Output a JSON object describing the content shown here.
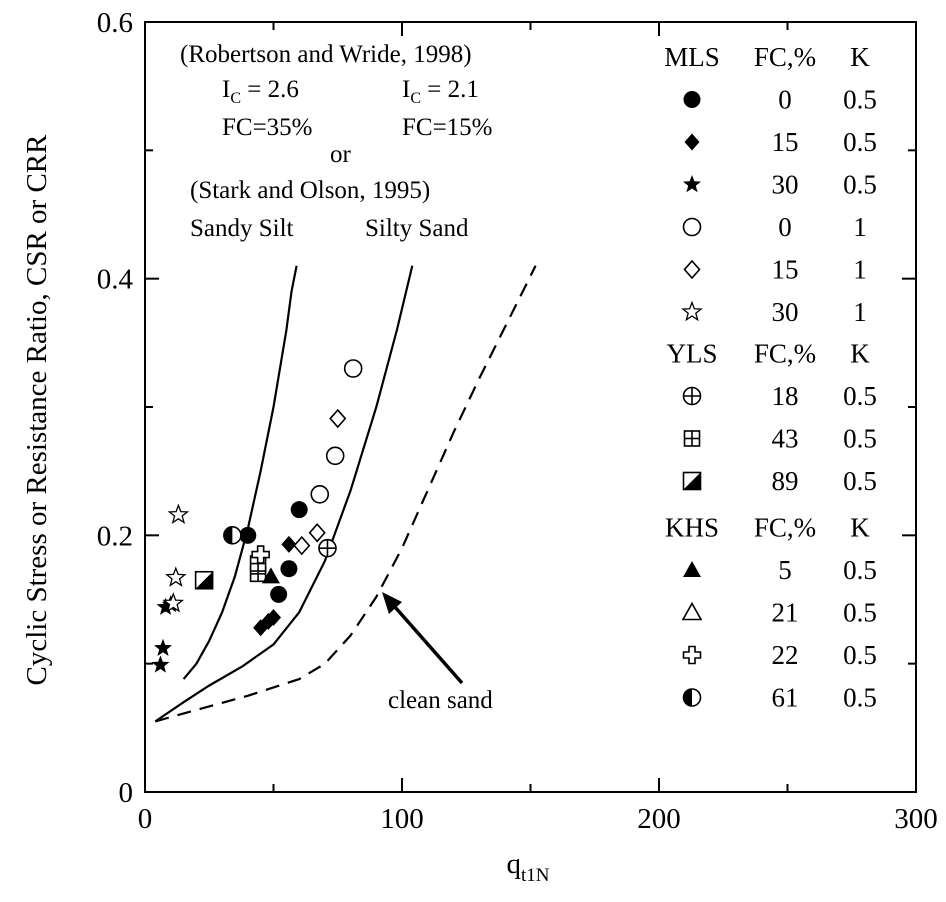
{
  "chart_data": {
    "type": "scatter",
    "xlabel": "q",
    "xlabel_sub": "t1N",
    "ylabel": "Cyclic Stress or Resistance Ratio, CSR or CRR",
    "xlim": [
      0,
      300
    ],
    "ylim": [
      0,
      0.6
    ],
    "x_ticks": [
      "0",
      "100",
      "200",
      "300"
    ],
    "y_ticks": [
      "0",
      "0.2",
      "0.4",
      "0.6"
    ],
    "grid": false,
    "annotations": {
      "source1": "(Robertson and Wride, 1998)",
      "ic_left": "I",
      "ic_left_sub": "C",
      "ic_left_val": " = 2.6",
      "ic_right": "I",
      "ic_right_sub": "C",
      "ic_right_val": " = 2.1",
      "fc_left": "FC=35%",
      "fc_right": "FC=15%",
      "or": "or",
      "source2": "(Stark and Olson, 1995)",
      "curve_left": "Sandy Silt",
      "curve_right": "Silty Sand",
      "clean_sand": "clean sand"
    },
    "curves": [
      {
        "name": "Sandy Silt",
        "style": "solid",
        "points": [
          [
            15,
            0.088
          ],
          [
            20,
            0.1
          ],
          [
            25,
            0.118
          ],
          [
            30,
            0.14
          ],
          [
            35,
            0.168
          ],
          [
            40,
            0.205
          ],
          [
            45,
            0.25
          ],
          [
            50,
            0.3
          ],
          [
            55,
            0.36
          ],
          [
            57,
            0.39
          ],
          [
            59,
            0.41
          ]
        ]
      },
      {
        "name": "Silty Sand",
        "style": "solid",
        "points": [
          [
            4,
            0.055
          ],
          [
            15,
            0.07
          ],
          [
            25,
            0.083
          ],
          [
            38,
            0.098
          ],
          [
            50,
            0.115
          ],
          [
            60,
            0.14
          ],
          [
            70,
            0.18
          ],
          [
            80,
            0.235
          ],
          [
            90,
            0.3
          ],
          [
            98,
            0.36
          ],
          [
            104,
            0.41
          ]
        ]
      },
      {
        "name": "clean sand",
        "style": "dashed",
        "points": [
          [
            4,
            0.055
          ],
          [
            20,
            0.064
          ],
          [
            40,
            0.075
          ],
          [
            60,
            0.088
          ],
          [
            70,
            0.1
          ],
          [
            80,
            0.122
          ],
          [
            90,
            0.152
          ],
          [
            100,
            0.19
          ],
          [
            110,
            0.235
          ],
          [
            120,
            0.28
          ],
          [
            130,
            0.322
          ],
          [
            140,
            0.362
          ],
          [
            152,
            0.41
          ]
        ]
      }
    ],
    "series": [
      {
        "group": "MLS",
        "fc": "0",
        "k": "0.5",
        "marker": "circle-filled",
        "points": [
          [
            40,
            0.2
          ],
          [
            52,
            0.154
          ],
          [
            56,
            0.174
          ],
          [
            60,
            0.22
          ]
        ]
      },
      {
        "group": "MLS",
        "fc": "15",
        "k": "0.5",
        "marker": "diamond-filled",
        "points": [
          [
            45,
            0.128
          ],
          [
            48,
            0.133
          ],
          [
            50,
            0.136
          ],
          [
            56,
            0.193
          ]
        ]
      },
      {
        "group": "MLS",
        "fc": "30",
        "k": "0.5",
        "marker": "star-filled",
        "points": [
          [
            6,
            0.099
          ],
          [
            7,
            0.112
          ],
          [
            8,
            0.144
          ],
          [
            10,
            0.146
          ]
        ]
      },
      {
        "group": "MLS",
        "fc": "0",
        "k": "1",
        "marker": "circle-open",
        "points": [
          [
            68,
            0.232
          ],
          [
            74,
            0.262
          ],
          [
            81,
            0.33
          ]
        ]
      },
      {
        "group": "MLS",
        "fc": "15",
        "k": "1",
        "marker": "diamond-open",
        "points": [
          [
            61,
            0.192
          ],
          [
            67,
            0.202
          ],
          [
            75,
            0.291
          ]
        ]
      },
      {
        "group": "MLS",
        "fc": "30",
        "k": "1",
        "marker": "star-open",
        "points": [
          [
            11,
            0.147
          ],
          [
            12,
            0.167
          ],
          [
            13,
            0.216
          ]
        ]
      },
      {
        "group": "YLS",
        "fc": "18",
        "k": "0.5",
        "marker": "circle-plus",
        "points": [
          [
            71,
            0.19
          ]
        ]
      },
      {
        "group": "YLS",
        "fc": "43",
        "k": "0.5",
        "marker": "square-plus",
        "points": [
          [
            44,
            0.17
          ],
          [
            44,
            0.178
          ]
        ]
      },
      {
        "group": "YLS",
        "fc": "89",
        "k": "0.5",
        "marker": "square-half",
        "points": [
          [
            23,
            0.165
          ]
        ]
      },
      {
        "group": "KHS",
        "fc": "5",
        "k": "0.5",
        "marker": "triangle-filled",
        "points": [
          [
            49,
            0.168
          ]
        ]
      },
      {
        "group": "KHS",
        "fc": "21",
        "k": "0.5",
        "marker": "triangle-open",
        "points": []
      },
      {
        "group": "KHS",
        "fc": "22",
        "k": "0.5",
        "marker": "cross-open",
        "points": [
          [
            45,
            0.185
          ]
        ]
      },
      {
        "group": "KHS",
        "fc": "61",
        "k": "0.5",
        "marker": "circle-half",
        "points": [
          [
            34,
            0.2
          ]
        ]
      }
    ],
    "legend": {
      "position": "right",
      "groups": [
        {
          "header": [
            "MLS",
            "FC,%",
            "K"
          ],
          "rows": [
            {
              "marker": "circle-filled",
              "fc": "0",
              "k": "0.5"
            },
            {
              "marker": "diamond-filled",
              "fc": "15",
              "k": "0.5"
            },
            {
              "marker": "star-filled",
              "fc": "30",
              "k": "0.5"
            },
            {
              "marker": "circle-open",
              "fc": "0",
              "k": "1"
            },
            {
              "marker": "diamond-open",
              "fc": "15",
              "k": "1"
            },
            {
              "marker": "star-open",
              "fc": "30",
              "k": "1"
            }
          ]
        },
        {
          "header": [
            "YLS",
            "FC,%",
            "K"
          ],
          "rows": [
            {
              "marker": "circle-plus",
              "fc": "18",
              "k": "0.5"
            },
            {
              "marker": "square-plus",
              "fc": "43",
              "k": "0.5"
            },
            {
              "marker": "square-half",
              "fc": "89",
              "k": "0.5"
            }
          ]
        },
        {
          "header": [
            "KHS",
            "FC,%",
            "K"
          ],
          "rows": [
            {
              "marker": "triangle-filled",
              "fc": "5",
              "k": "0.5"
            },
            {
              "marker": "triangle-open",
              "fc": "21",
              "k": "0.5"
            },
            {
              "marker": "cross-open",
              "fc": "22",
              "k": "0.5"
            },
            {
              "marker": "circle-half",
              "fc": "61",
              "k": "0.5"
            }
          ]
        }
      ]
    },
    "colors": {
      "ink": "#000000",
      "background": "#ffffff"
    }
  }
}
